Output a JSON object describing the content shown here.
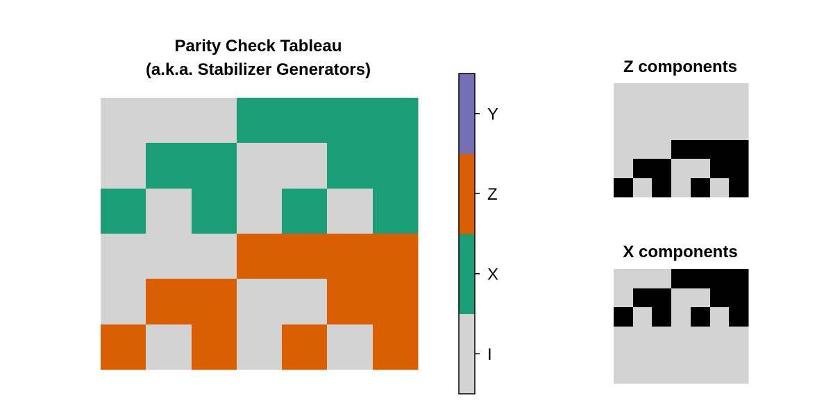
{
  "chart_data": [
    {
      "type": "heatmap",
      "title_lines": [
        "Parity Check Tableau",
        "(a.k.a. Stabilizer Generators)"
      ],
      "rows": 6,
      "cols": 7,
      "values": [
        [
          "I",
          "I",
          "I",
          "X",
          "X",
          "X",
          "X"
        ],
        [
          "I",
          "X",
          "X",
          "I",
          "I",
          "X",
          "X"
        ],
        [
          "X",
          "I",
          "X",
          "I",
          "X",
          "I",
          "X"
        ],
        [
          "I",
          "I",
          "I",
          "Z",
          "Z",
          "Z",
          "Z"
        ],
        [
          "I",
          "Z",
          "Z",
          "I",
          "I",
          "Z",
          "Z"
        ],
        [
          "Z",
          "I",
          "Z",
          "I",
          "Z",
          "I",
          "Z"
        ]
      ],
      "colors": {
        "I": "#d3d3d3",
        "X": "#1b9e77",
        "Z": "#d95f02",
        "Y": "#7570b3"
      }
    },
    {
      "type": "colorbar",
      "levels": [
        "I",
        "X",
        "Z",
        "Y"
      ],
      "tick_labels": [
        "I",
        "X",
        "Z",
        "Y"
      ],
      "colors": [
        "#d3d3d3",
        "#1b9e77",
        "#d95f02",
        "#7570b3"
      ]
    },
    {
      "type": "heatmap",
      "title": "Z components",
      "rows": 6,
      "cols": 7,
      "values": [
        [
          0,
          0,
          0,
          0,
          0,
          0,
          0
        ],
        [
          0,
          0,
          0,
          0,
          0,
          0,
          0
        ],
        [
          0,
          0,
          0,
          0,
          0,
          0,
          0
        ],
        [
          0,
          0,
          0,
          1,
          1,
          1,
          1
        ],
        [
          0,
          1,
          1,
          0,
          0,
          1,
          1
        ],
        [
          1,
          0,
          1,
          0,
          1,
          0,
          1
        ]
      ],
      "colors": {
        "0": "#d3d3d3",
        "1": "#000000"
      }
    },
    {
      "type": "heatmap",
      "title": "X components",
      "rows": 6,
      "cols": 7,
      "values": [
        [
          0,
          0,
          0,
          1,
          1,
          1,
          1
        ],
        [
          0,
          1,
          1,
          0,
          0,
          1,
          1
        ],
        [
          1,
          0,
          1,
          0,
          1,
          0,
          1
        ],
        [
          0,
          0,
          0,
          0,
          0,
          0,
          0
        ],
        [
          0,
          0,
          0,
          0,
          0,
          0,
          0
        ],
        [
          0,
          0,
          0,
          0,
          0,
          0,
          0
        ]
      ],
      "colors": {
        "0": "#d3d3d3",
        "1": "#000000"
      }
    }
  ]
}
